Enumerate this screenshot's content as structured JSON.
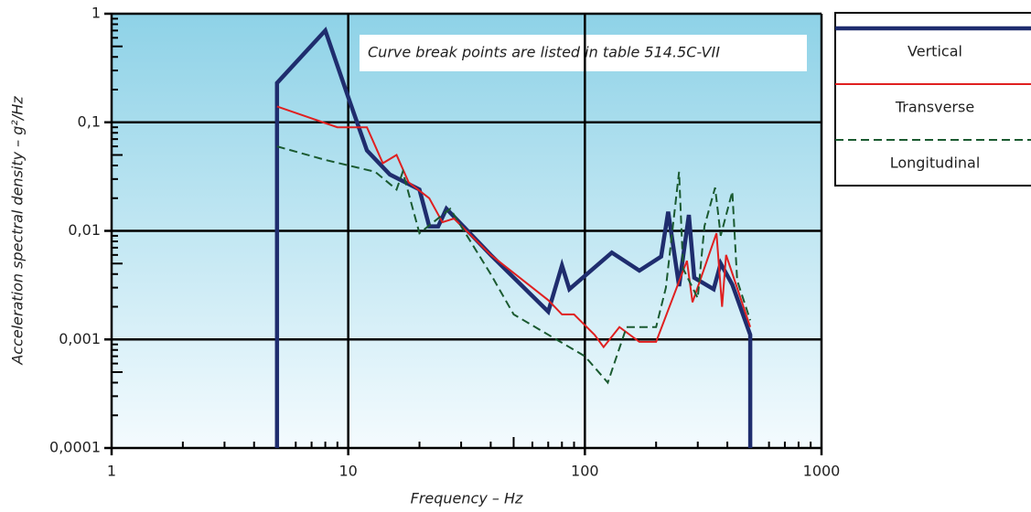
{
  "chart_data": {
    "type": "line",
    "xlabel": "Frequency – Hz",
    "ylabel": "Acceleration spectral density – g²/Hz",
    "annotation": "Curve break points are listed in table 514.5C-VII",
    "log_x": true,
    "log_y": true,
    "grid": true,
    "legend": "right",
    "xlim": [
      1,
      1000
    ],
    "xticks": [
      1,
      10,
      100,
      1000
    ],
    "ylim": [
      0.0001,
      1
    ],
    "yticks": [
      {
        "value": 0.0001,
        "label": "0,0001"
      },
      {
        "value": 0.001,
        "label": "0,001"
      },
      {
        "value": 0.01,
        "label": "0,01"
      },
      {
        "value": 0.1,
        "label": "0,1"
      },
      1
    ],
    "series": [
      {
        "name": "Vertical",
        "color": "#1f2d6e",
        "style": "solid",
        "x": [
          5,
          5,
          8,
          10,
          12,
          15,
          20,
          22,
          24,
          26,
          40,
          70,
          80,
          86,
          130,
          170,
          210,
          225,
          250,
          275,
          290,
          350,
          375,
          420,
          500,
          500
        ],
        "values": [
          0.0001,
          0.23,
          0.7,
          0.17,
          0.055,
          0.033,
          0.024,
          0.011,
          0.011,
          0.016,
          0.006,
          0.0018,
          0.0048,
          0.0029,
          0.0063,
          0.0043,
          0.0058,
          0.015,
          0.0031,
          0.014,
          0.0037,
          0.0029,
          0.005,
          0.0032,
          0.0011,
          0.0001
        ]
      },
      {
        "name": "Transverse",
        "color": "#e02020",
        "style": "solid",
        "x": [
          5,
          9,
          12,
          14,
          16,
          18,
          22,
          25,
          28,
          40,
          70,
          80,
          90,
          110,
          120,
          140,
          170,
          200,
          270,
          285,
          360,
          380,
          395,
          500
        ],
        "values": [
          0.14,
          0.09,
          0.09,
          0.042,
          0.05,
          0.028,
          0.02,
          0.012,
          0.013,
          0.006,
          0.0023,
          0.0017,
          0.0017,
          0.0011,
          0.00085,
          0.0013,
          0.00095,
          0.00095,
          0.0053,
          0.0022,
          0.0095,
          0.002,
          0.006,
          0.0013
        ]
      },
      {
        "name": "Longitudinal",
        "color": "#1a5a30",
        "style": "dashed",
        "x": [
          5,
          8,
          13,
          16,
          17,
          20,
          27,
          40,
          50,
          100,
          125,
          150,
          200,
          220,
          250,
          260,
          300,
          320,
          355,
          375,
          420,
          440,
          500
        ],
        "values": [
          0.06,
          0.045,
          0.035,
          0.024,
          0.035,
          0.0095,
          0.016,
          0.004,
          0.0017,
          0.0007,
          0.0004,
          0.0013,
          0.0013,
          0.003,
          0.035,
          0.0045,
          0.0024,
          0.011,
          0.025,
          0.009,
          0.023,
          0.0035,
          0.0015
        ]
      }
    ]
  }
}
